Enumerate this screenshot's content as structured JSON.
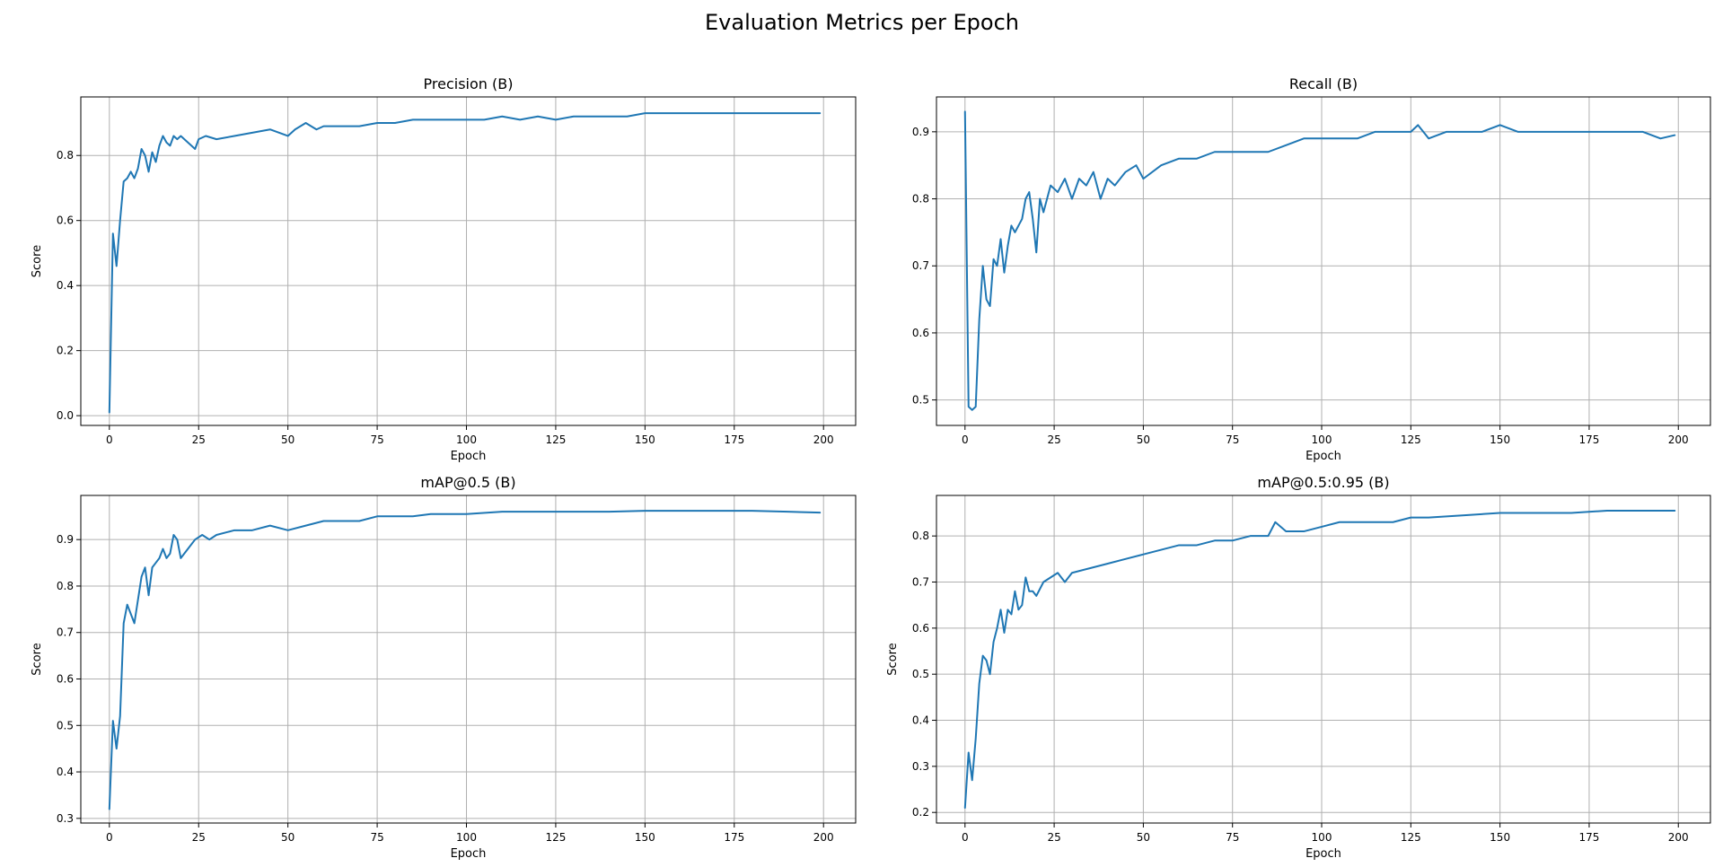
{
  "figure": {
    "title": "Evaluation Metrics per Epoch"
  },
  "chart_data": [
    {
      "type": "line",
      "title": "Precision (B)",
      "xlabel": "Epoch",
      "ylabel": "Score",
      "xlim": [
        -8,
        209
      ],
      "ylim": [
        -0.03,
        0.98
      ],
      "xticks": [
        0,
        25,
        50,
        75,
        100,
        125,
        150,
        175,
        200
      ],
      "yticks": [
        0.0,
        0.2,
        0.4,
        0.6,
        0.8
      ],
      "grid": true,
      "color": "#1f77b4",
      "series": [
        {
          "x": [
            0,
            1,
            2,
            3,
            4,
            5,
            6,
            7,
            8,
            9,
            10,
            11,
            12,
            13,
            14,
            15,
            16,
            17,
            18,
            19,
            20,
            22,
            24,
            25,
            27,
            30,
            35,
            40,
            45,
            50,
            52,
            55,
            58,
            60,
            65,
            70,
            75,
            80,
            85,
            90,
            95,
            100,
            105,
            110,
            115,
            120,
            125,
            130,
            135,
            140,
            145,
            150,
            155,
            160,
            165,
            170,
            175,
            180,
            185,
            190,
            195,
            199
          ],
          "y": [
            0.01,
            0.56,
            0.46,
            0.6,
            0.72,
            0.73,
            0.75,
            0.73,
            0.76,
            0.82,
            0.8,
            0.75,
            0.81,
            0.78,
            0.83,
            0.86,
            0.84,
            0.83,
            0.86,
            0.85,
            0.86,
            0.84,
            0.82,
            0.85,
            0.86,
            0.85,
            0.86,
            0.87,
            0.88,
            0.86,
            0.88,
            0.9,
            0.88,
            0.89,
            0.89,
            0.89,
            0.9,
            0.9,
            0.91,
            0.91,
            0.91,
            0.91,
            0.91,
            0.92,
            0.91,
            0.92,
            0.91,
            0.92,
            0.92,
            0.92,
            0.92,
            0.93,
            0.93,
            0.93,
            0.93,
            0.93,
            0.93,
            0.93,
            0.93,
            0.93,
            0.93,
            0.93
          ]
        }
      ]
    },
    {
      "type": "line",
      "title": "Recall (B)",
      "xlabel": "Epoch",
      "ylabel": "",
      "xlim": [
        -8,
        209
      ],
      "ylim": [
        0.462,
        0.952
      ],
      "xticks": [
        0,
        25,
        50,
        75,
        100,
        125,
        150,
        175,
        200
      ],
      "yticks": [
        0.5,
        0.6,
        0.7,
        0.8,
        0.9
      ],
      "grid": true,
      "color": "#1f77b4",
      "series": [
        {
          "x": [
            0,
            1,
            2,
            3,
            4,
            5,
            6,
            7,
            8,
            9,
            10,
            11,
            12,
            13,
            14,
            15,
            16,
            17,
            18,
            19,
            20,
            21,
            22,
            24,
            26,
            28,
            30,
            32,
            34,
            36,
            38,
            40,
            42,
            45,
            48,
            50,
            55,
            60,
            65,
            70,
            75,
            80,
            85,
            90,
            95,
            100,
            105,
            110,
            115,
            120,
            125,
            127,
            130,
            135,
            140,
            145,
            150,
            155,
            160,
            165,
            170,
            175,
            180,
            185,
            190,
            195,
            199
          ],
          "y": [
            0.93,
            0.49,
            0.485,
            0.49,
            0.62,
            0.7,
            0.65,
            0.64,
            0.71,
            0.7,
            0.74,
            0.69,
            0.73,
            0.76,
            0.75,
            0.76,
            0.77,
            0.8,
            0.81,
            0.77,
            0.72,
            0.8,
            0.78,
            0.82,
            0.81,
            0.83,
            0.8,
            0.83,
            0.82,
            0.84,
            0.8,
            0.83,
            0.82,
            0.84,
            0.85,
            0.83,
            0.85,
            0.86,
            0.86,
            0.87,
            0.87,
            0.87,
            0.87,
            0.88,
            0.89,
            0.89,
            0.89,
            0.89,
            0.9,
            0.9,
            0.9,
            0.91,
            0.89,
            0.9,
            0.9,
            0.9,
            0.91,
            0.9,
            0.9,
            0.9,
            0.9,
            0.9,
            0.9,
            0.9,
            0.9,
            0.89,
            0.895
          ]
        }
      ]
    },
    {
      "type": "line",
      "title": "mAP@0.5 (B)",
      "xlabel": "Epoch",
      "ylabel": "Score",
      "xlim": [
        -8,
        209
      ],
      "ylim": [
        0.29,
        0.995
      ],
      "xticks": [
        0,
        25,
        50,
        75,
        100,
        125,
        150,
        175,
        200
      ],
      "yticks": [
        0.3,
        0.4,
        0.5,
        0.6,
        0.7,
        0.8,
        0.9
      ],
      "grid": true,
      "color": "#1f77b4",
      "series": [
        {
          "x": [
            0,
            1,
            2,
            3,
            4,
            5,
            6,
            7,
            8,
            9,
            10,
            11,
            12,
            13,
            14,
            15,
            16,
            17,
            18,
            19,
            20,
            22,
            24,
            26,
            28,
            30,
            35,
            40,
            45,
            50,
            55,
            60,
            65,
            70,
            75,
            80,
            85,
            90,
            95,
            100,
            110,
            120,
            130,
            140,
            150,
            160,
            170,
            180,
            190,
            199
          ],
          "y": [
            0.32,
            0.51,
            0.45,
            0.52,
            0.72,
            0.76,
            0.74,
            0.72,
            0.77,
            0.82,
            0.84,
            0.78,
            0.84,
            0.85,
            0.86,
            0.88,
            0.86,
            0.87,
            0.91,
            0.9,
            0.86,
            0.88,
            0.9,
            0.91,
            0.9,
            0.91,
            0.92,
            0.92,
            0.93,
            0.92,
            0.93,
            0.94,
            0.94,
            0.94,
            0.95,
            0.95,
            0.95,
            0.955,
            0.955,
            0.955,
            0.96,
            0.96,
            0.96,
            0.96,
            0.962,
            0.962,
            0.962,
            0.962,
            0.96,
            0.958
          ]
        }
      ]
    },
    {
      "type": "line",
      "title": "mAP@0.5:0.95 (B)",
      "xlabel": "Epoch",
      "ylabel": "Score",
      "xlim": [
        -8,
        209
      ],
      "ylim": [
        0.177,
        0.888
      ],
      "xticks": [
        0,
        25,
        50,
        75,
        100,
        125,
        150,
        175,
        200
      ],
      "yticks": [
        0.2,
        0.3,
        0.4,
        0.5,
        0.6,
        0.7,
        0.8
      ],
      "grid": true,
      "color": "#1f77b4",
      "series": [
        {
          "x": [
            0,
            1,
            2,
            3,
            4,
            5,
            6,
            7,
            8,
            9,
            10,
            11,
            12,
            13,
            14,
            15,
            16,
            17,
            18,
            19,
            20,
            22,
            24,
            26,
            28,
            30,
            35,
            40,
            45,
            50,
            55,
            60,
            65,
            70,
            75,
            80,
            85,
            87,
            90,
            95,
            100,
            105,
            110,
            115,
            120,
            125,
            130,
            140,
            150,
            160,
            170,
            180,
            190,
            199
          ],
          "y": [
            0.21,
            0.33,
            0.27,
            0.36,
            0.48,
            0.54,
            0.53,
            0.5,
            0.57,
            0.6,
            0.64,
            0.59,
            0.64,
            0.63,
            0.68,
            0.64,
            0.65,
            0.71,
            0.68,
            0.68,
            0.67,
            0.7,
            0.71,
            0.72,
            0.7,
            0.72,
            0.73,
            0.74,
            0.75,
            0.76,
            0.77,
            0.78,
            0.78,
            0.79,
            0.79,
            0.8,
            0.8,
            0.83,
            0.81,
            0.81,
            0.82,
            0.83,
            0.83,
            0.83,
            0.83,
            0.84,
            0.84,
            0.845,
            0.85,
            0.85,
            0.85,
            0.855,
            0.855,
            0.855
          ]
        }
      ]
    }
  ]
}
